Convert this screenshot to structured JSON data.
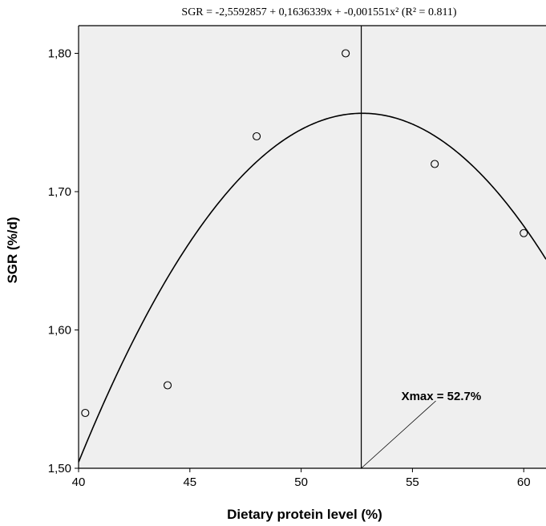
{
  "chart_data": {
    "type": "scatter",
    "title": "SGR = -2,5592857 + 0,1636339x + -0,001551x² (R² = 0.811)",
    "xlabel": "Dietary protein level (%)",
    "ylabel": "SGR (%/d)",
    "xlim": [
      40,
      61
    ],
    "ylim": [
      1.5,
      1.82
    ],
    "x_ticks": [
      "40",
      "45",
      "50",
      "55",
      "60"
    ],
    "x_tick_values": [
      40,
      45,
      50,
      55,
      60
    ],
    "y_ticks": [
      "1,50",
      "1,60",
      "1,70",
      "1,80"
    ],
    "y_tick_values": [
      1.5,
      1.6,
      1.7,
      1.8
    ],
    "points": [
      {
        "x": 40.3,
        "y": 1.54
      },
      {
        "x": 44,
        "y": 1.56
      },
      {
        "x": 48,
        "y": 1.74
      },
      {
        "x": 52,
        "y": 1.8
      },
      {
        "x": 56,
        "y": 1.72
      },
      {
        "x": 60,
        "y": 1.67
      }
    ],
    "fit": {
      "type": "quadratic",
      "a": -2.5592857,
      "b": 0.1636339,
      "c": -0.001551,
      "r2": 0.811
    },
    "xmax_line": 52.7,
    "annotation": "Xmax = 52.7%",
    "grid": false,
    "background": "#efefef"
  }
}
